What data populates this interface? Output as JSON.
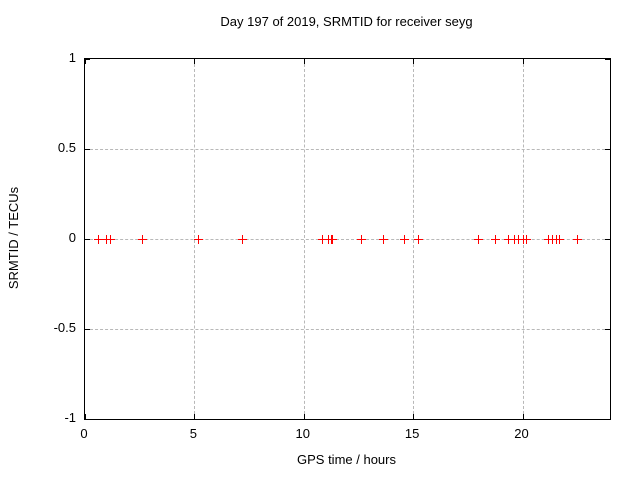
{
  "chart_data": {
    "type": "scatter",
    "title": "Day 197 of 2019, SRMTID for receiver seyg",
    "xlabel": "GPS time / hours",
    "ylabel": "SRMTID / TECUs",
    "xlim": [
      0,
      24
    ],
    "ylim": [
      -1,
      1
    ],
    "x_ticks": [
      0,
      5,
      10,
      15,
      20
    ],
    "y_ticks": [
      1,
      0.5,
      0,
      -0.5,
      -1
    ],
    "grid": true,
    "legend": "none",
    "marker_shape": "plus",
    "marker_color": "#ff0000",
    "series": [
      {
        "name": "SRMTID",
        "x": [
          0.58,
          0.95,
          1.16,
          2.59,
          5.18,
          7.16,
          10.82,
          11.1,
          11.23,
          11.31,
          12.62,
          13.61,
          14.6,
          15.21,
          17.95,
          18.74,
          19.35,
          19.63,
          19.81,
          20.0,
          20.15,
          21.15,
          21.35,
          21.53,
          21.69,
          22.5
        ],
        "y": [
          0,
          0,
          0,
          0,
          0,
          0,
          0,
          0,
          0,
          0,
          0,
          0,
          0,
          0,
          0,
          0,
          0,
          0,
          0,
          0,
          0,
          0,
          0,
          0,
          0,
          0
        ]
      }
    ]
  }
}
